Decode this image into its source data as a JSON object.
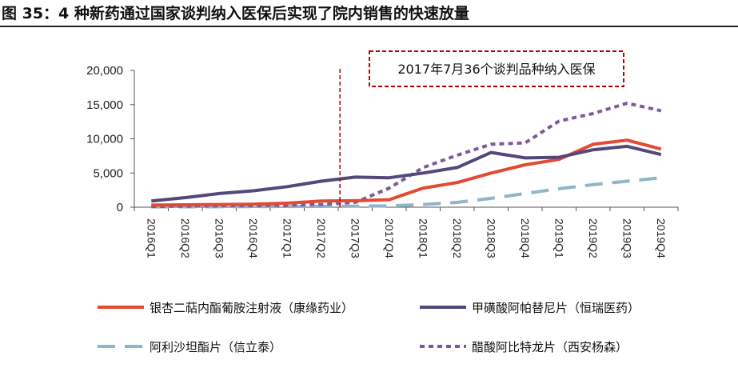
{
  "figure": {
    "title": "图 35：4 种新药通过国家谈判纳入医保后实现了院内销售的快速放量"
  },
  "chart_data": {
    "type": "line",
    "title": "",
    "xlabel": "",
    "ylabel": "",
    "x": [
      "2016Q1",
      "2016Q2",
      "2016Q3",
      "2016Q4",
      "2017Q1",
      "2017Q2",
      "2017Q3",
      "2017Q4",
      "2018Q1",
      "2018Q2",
      "2018Q3",
      "2018Q4",
      "2019Q1",
      "2019Q2",
      "2019Q3",
      "2019Q4"
    ],
    "ylim": [
      0,
      20000
    ],
    "yticks": [
      0,
      5000,
      10000,
      15000,
      20000
    ],
    "ytick_labels": [
      "0",
      "5,000",
      "10,000",
      "15,000",
      "20,000"
    ],
    "grid": false,
    "legend_position": "bottom",
    "series": [
      {
        "name": "银杏二萜内酯葡胺注射液（康缘药业）",
        "color": "#e34a33",
        "dash": "solid",
        "values": [
          300,
          350,
          400,
          450,
          600,
          900,
          950,
          1100,
          2800,
          3600,
          5000,
          6200,
          7000,
          9200,
          9800,
          8500
        ]
      },
      {
        "name": "甲磺酸阿帕替尼片（恒瑞医药）",
        "color": "#54477a",
        "dash": "solid",
        "values": [
          900,
          1400,
          2000,
          2400,
          3000,
          3800,
          4400,
          4300,
          5000,
          5800,
          8000,
          7200,
          7300,
          8400,
          8900,
          7700
        ]
      },
      {
        "name": "阿利沙坦酯片（信立泰）",
        "color": "#8fb5c9",
        "dash": "longdash",
        "values": [
          50,
          60,
          70,
          80,
          100,
          120,
          150,
          200,
          400,
          700,
          1300,
          2000,
          2700,
          3300,
          3800,
          4300
        ]
      },
      {
        "name": "醋酸阿比特龙片（西安杨森）",
        "color": "#7d5a99",
        "dash": "shortdash",
        "values": [
          100,
          150,
          200,
          250,
          300,
          400,
          700,
          2800,
          5800,
          7600,
          9200,
          9400,
          12600,
          13700,
          15200,
          14100
        ]
      }
    ],
    "annotations": [
      {
        "text": "2017年7月36个谈判品种纳入医保",
        "x": "2017Q3",
        "color": "#c00000"
      }
    ]
  }
}
